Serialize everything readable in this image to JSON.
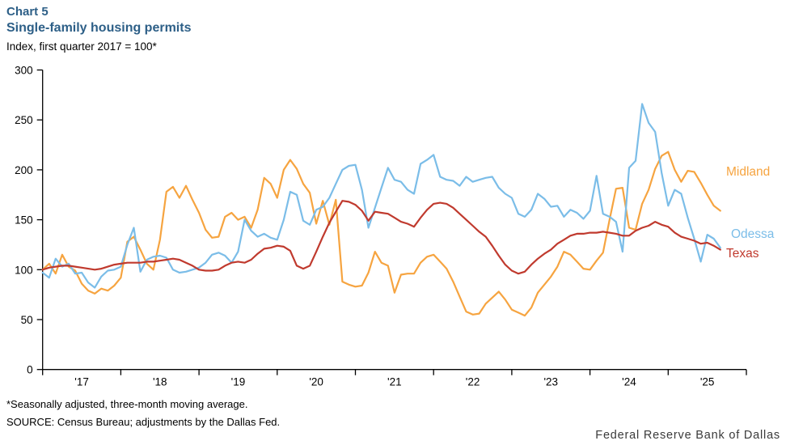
{
  "header": {
    "chart_label": "Chart 5",
    "title": "Single-family housing permits",
    "subtitle": "Index, first quarter 2017 = 100*"
  },
  "footnotes": {
    "note": "*Seasonally adjusted, three-month moving average.",
    "source": "SOURCE:  Census Bureau; adjustments  by the Dallas Fed.",
    "branding": "Federal  Reserve  Bank of Dallas"
  },
  "colors": {
    "title_blue": "#2D5F87",
    "axis_black": "#000000"
  },
  "chart_data": {
    "type": "line",
    "title": "Single-family housing permits",
    "ylabel": "Index, first quarter 2017 = 100*",
    "ylim": [
      0,
      300
    ],
    "yticks": [
      0,
      50,
      100,
      150,
      200,
      250,
      300
    ],
    "grid": false,
    "x_start": "2017-01",
    "x_end": "2025-09",
    "frequency": "monthly",
    "xtick_labels": [
      "'17",
      "'18",
      "'19",
      "'20",
      "'21",
      "'22",
      "'23",
      "'24",
      "'25"
    ],
    "legend_position": "right-end-of-lines",
    "series": [
      {
        "name": "Midland",
        "color": "#F6A440",
        "values": [
          100,
          106,
          96,
          115,
          103,
          99,
          86,
          79,
          76,
          81,
          79,
          84,
          92,
          128,
          133,
          120,
          106,
          100,
          130,
          178,
          183,
          172,
          184,
          170,
          157,
          140,
          132,
          133,
          153,
          157,
          150,
          153,
          142,
          160,
          192,
          186,
          172,
          200,
          210,
          201,
          186,
          177,
          146,
          169,
          145,
          170,
          88,
          85,
          83,
          84,
          97,
          118,
          107,
          104,
          77,
          95,
          96,
          96,
          107,
          113,
          115,
          108,
          101,
          88,
          73,
          58,
          55,
          56,
          66,
          72,
          78,
          70,
          60,
          57,
          54,
          62,
          77,
          85,
          93,
          103,
          118,
          115,
          108,
          101,
          100,
          109,
          117,
          150,
          181,
          182,
          142,
          140,
          166,
          180,
          201,
          214,
          218,
          200,
          188,
          199,
          198,
          187,
          175,
          164,
          159
        ]
      },
      {
        "name": "Odessa",
        "color": "#7BBDE8",
        "values": [
          97,
          92,
          111,
          103,
          106,
          96,
          97,
          87,
          82,
          93,
          99,
          100,
          103,
          125,
          142,
          98,
          110,
          113,
          114,
          112,
          100,
          97,
          98,
          100,
          102,
          107,
          115,
          117,
          114,
          107,
          118,
          150,
          139,
          133,
          136,
          132,
          130,
          150,
          178,
          175,
          149,
          145,
          160,
          163,
          172,
          186,
          200,
          204,
          205,
          180,
          142,
          162,
          182,
          202,
          190,
          188,
          180,
          176,
          206,
          210,
          215,
          193,
          190,
          189,
          184,
          193,
          188,
          190,
          192,
          193,
          182,
          176,
          172,
          156,
          153,
          160,
          176,
          171,
          163,
          164,
          153,
          160,
          157,
          151,
          159,
          194,
          156,
          153,
          148,
          118,
          202,
          209,
          266,
          247,
          238,
          197,
          164,
          180,
          176,
          152,
          131,
          108,
          135,
          131,
          122
        ]
      },
      {
        "name": "Texas",
        "color": "#C03A2E",
        "values": [
          100,
          102,
          103,
          104,
          104,
          103,
          102,
          101,
          100,
          101,
          103,
          105,
          106,
          107,
          107,
          107,
          108,
          108,
          109,
          110,
          111,
          110,
          107,
          104,
          100,
          99,
          99,
          100,
          104,
          107,
          108,
          107,
          110,
          116,
          121,
          122,
          124,
          123,
          119,
          104,
          101,
          104,
          118,
          133,
          147,
          158,
          169,
          168,
          165,
          159,
          149,
          158,
          157,
          156,
          152,
          148,
          146,
          143,
          152,
          160,
          166,
          167,
          166,
          162,
          156,
          150,
          144,
          138,
          133,
          124,
          114,
          105,
          99,
          96,
          98,
          105,
          111,
          116,
          120,
          126,
          130,
          134,
          136,
          136,
          137,
          137,
          138,
          137,
          136,
          134,
          134,
          139,
          142,
          144,
          148,
          145,
          143,
          137,
          133,
          131,
          129,
          126,
          127,
          124,
          120
        ]
      }
    ]
  }
}
